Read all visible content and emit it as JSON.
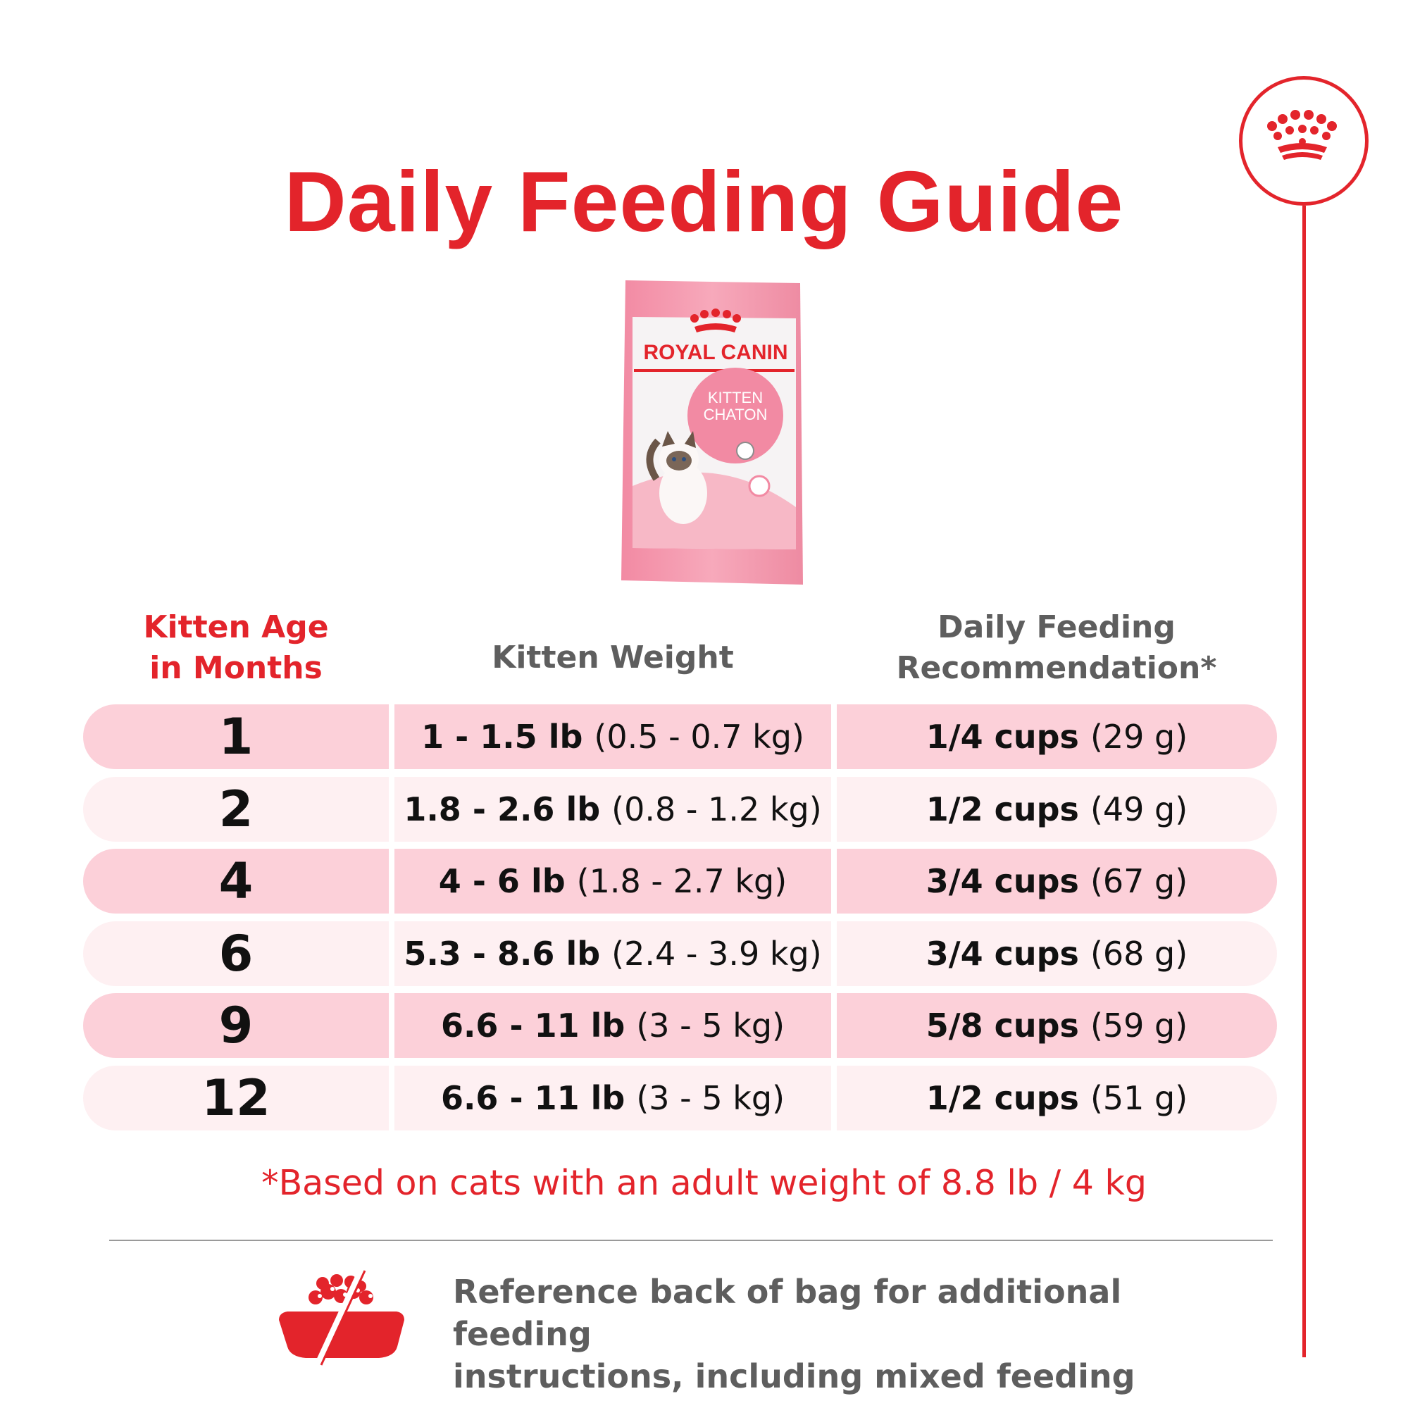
{
  "title": "Daily Feeding Guide",
  "brand": {
    "logo_text": "ROYAL CANIN",
    "product_line1": "KITTEN",
    "product_line2": "CHATON",
    "accent_color": "#e3242b"
  },
  "table": {
    "headers": {
      "age": [
        "Kitten Age",
        "in Months"
      ],
      "weight": "Kitten Weight",
      "feeding": [
        "Daily Feeding",
        "Recommendation*"
      ]
    },
    "rows": [
      {
        "age": "1",
        "weight_lb": "1 - 1.5 lb",
        "weight_kg": "(0.5 - 0.7 kg)",
        "cups": "1/4 cups",
        "grams": "(29 g)"
      },
      {
        "age": "2",
        "weight_lb": "1.8 - 2.6 lb",
        "weight_kg": "(0.8 - 1.2 kg)",
        "cups": "1/2 cups",
        "grams": "(49 g)"
      },
      {
        "age": "4",
        "weight_lb": "4 - 6 lb",
        "weight_kg": "(1.8 - 2.7 kg)",
        "cups": "3/4 cups",
        "grams": "(67 g)"
      },
      {
        "age": "6",
        "weight_lb": "5.3 - 8.6 lb",
        "weight_kg": "(2.4 - 3.9 kg)",
        "cups": "3/4 cups",
        "grams": "(68 g)"
      },
      {
        "age": "9",
        "weight_lb": "6.6 - 11 lb",
        "weight_kg": "(3 - 5 kg)",
        "cups": "5/8 cups",
        "grams": "(59 g)"
      },
      {
        "age": "12",
        "weight_lb": "6.6 - 11 lb",
        "weight_kg": "(3 - 5 kg)",
        "cups": "1/2 cups",
        "grams": "(51 g)"
      }
    ]
  },
  "footnote": "*Based on cats with an adult weight of 8.8 lb / 4 kg",
  "note": {
    "icon": "food-bowl-icon",
    "lines": [
      "Reference back of bag for additional feeding",
      "instructions, including mixed feeding"
    ]
  }
}
